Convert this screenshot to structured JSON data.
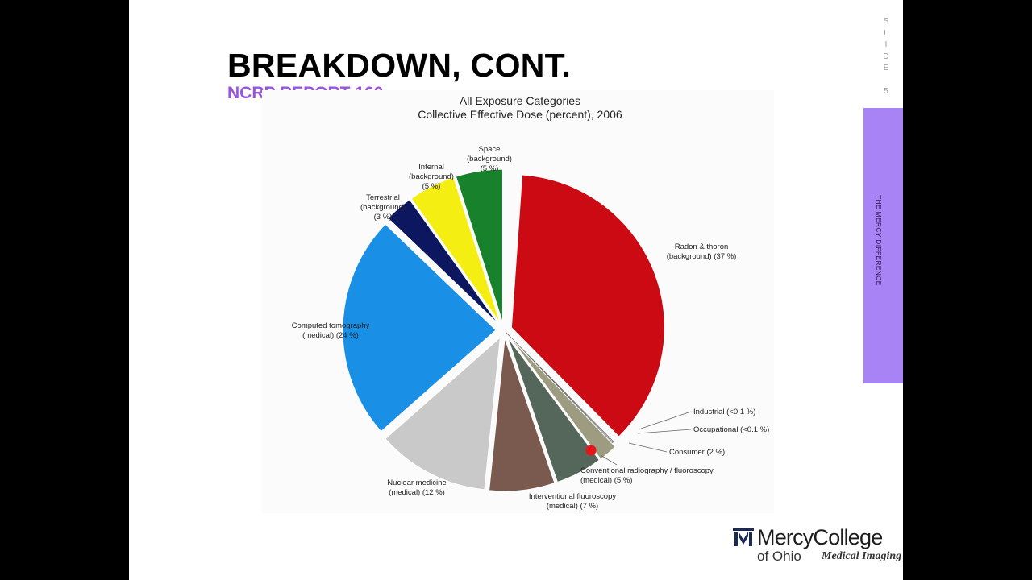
{
  "slide": {
    "title": "BREAKDOWN, CONT.",
    "subtitle": "NCRP REPORT 160",
    "slide_number_label": "SLIDE 5",
    "side_band_text": "THE MERCY DIFFERENCE",
    "colors": {
      "subtitle": "#9a55e0",
      "side_band": "#a883f5",
      "background": "#ffffff",
      "letterbox": "#000000"
    }
  },
  "chart_data": {
    "type": "pie",
    "title": "All Exposure Categories",
    "subtitle": "Collective Effective Dose (percent), 2006",
    "slices": [
      {
        "name": "Radon & thoron",
        "group": "(background) (37 %)",
        "value": 37,
        "color": "#cc0a14"
      },
      {
        "name": "Industrial (<0.1 %)",
        "group": "",
        "value": 0.1,
        "color": "#ffffff"
      },
      {
        "name": "Occupational (<0.1 %)",
        "group": "",
        "value": 0.1,
        "color": "#ffffff"
      },
      {
        "name": "Consumer (2 %)",
        "group": "",
        "value": 2,
        "color": "#9e9c80"
      },
      {
        "name": "Conventional radiography / fluoroscopy",
        "group": "(medical) (5 %)",
        "value": 5,
        "color": "#55675a"
      },
      {
        "name": "Interventional fluoroscopy",
        "group": "(medical) (7 %)",
        "value": 7,
        "color": "#7a5a4e"
      },
      {
        "name": "Nuclear medicine",
        "group": "(medical) (12 %)",
        "value": 12,
        "color": "#c9c9c9"
      },
      {
        "name": "Computed tomography",
        "group": "(medical) (24 %)",
        "value": 24,
        "color": "#1a8fe6"
      },
      {
        "name": "Terrestrial",
        "group": "(background)|(3 %)",
        "value": 3,
        "color": "#0d1760"
      },
      {
        "name": "Internal",
        "group": "(background)|(5 %)",
        "value": 5,
        "color": "#f5ee13"
      },
      {
        "name": "Space",
        "group": "(background)|(5 %)",
        "value": 5,
        "color": "#17812c"
      }
    ],
    "legend": "none"
  },
  "logo": {
    "name": "MercyCollege",
    "sub1": "of Ohio",
    "sub2": "Medical Imaging",
    "mark_icon": "mercy-college-mark-icon"
  }
}
